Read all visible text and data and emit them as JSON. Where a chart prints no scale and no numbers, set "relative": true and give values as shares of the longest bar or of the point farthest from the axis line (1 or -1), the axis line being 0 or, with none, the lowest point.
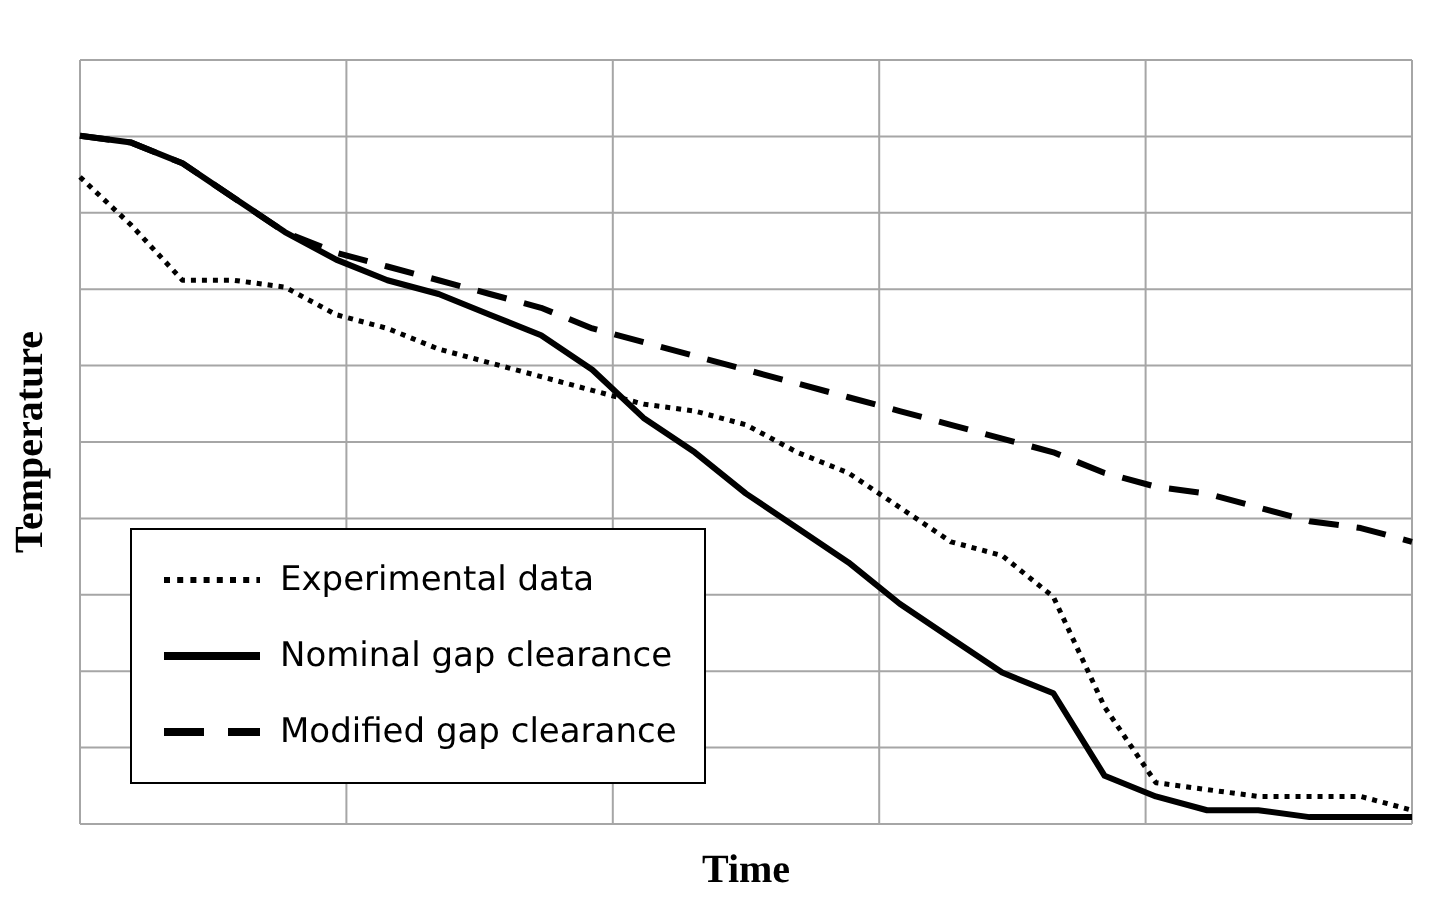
{
  "chart_data": {
    "type": "line",
    "relative": true,
    "xlabel": "Time",
    "ylabel": "Temperature",
    "grid": true,
    "legend": "bottom left",
    "marker": "none",
    "categories": [
      null,
      null,
      null,
      null,
      null,
      null,
      null,
      null,
      null,
      null,
      null,
      null,
      null,
      null,
      null,
      null,
      null,
      null,
      null,
      null,
      null,
      null,
      null,
      null,
      null,
      null,
      null
    ],
    "series": [
      {
        "name": "Experimental data",
        "color": "#000000",
        "line_style": "dotted",
        "values": [
          0.94,
          0.87,
          0.79,
          0.79,
          0.78,
          0.74,
          0.72,
          0.69,
          0.67,
          0.65,
          0.63,
          0.61,
          0.6,
          0.58,
          0.54,
          0.51,
          0.46,
          0.41,
          0.39,
          0.33,
          0.17,
          0.06,
          0.05,
          0.04,
          0.04,
          0.04,
          0.02
        ]
      },
      {
        "name": "Nominal gap clearance",
        "color": "#000000",
        "line_style": "solid",
        "values": [
          1.0,
          0.99,
          0.96,
          0.91,
          0.86,
          0.82,
          0.79,
          0.77,
          0.74,
          0.71,
          0.66,
          0.59,
          0.54,
          0.48,
          0.43,
          0.38,
          0.32,
          0.27,
          0.22,
          0.19,
          0.07,
          0.04,
          0.02,
          0.02,
          0.01,
          0.01,
          0.01
        ]
      },
      {
        "name": "Modified gap clearance",
        "color": "#000000",
        "line_style": "dashed",
        "values": [
          1.0,
          0.99,
          0.96,
          0.91,
          0.86,
          0.83,
          0.81,
          0.79,
          0.77,
          0.75,
          0.72,
          0.7,
          0.68,
          0.66,
          0.64,
          0.62,
          0.6,
          0.58,
          0.56,
          0.54,
          0.51,
          0.49,
          0.48,
          0.46,
          0.44,
          0.43,
          0.41
        ]
      }
    ]
  }
}
